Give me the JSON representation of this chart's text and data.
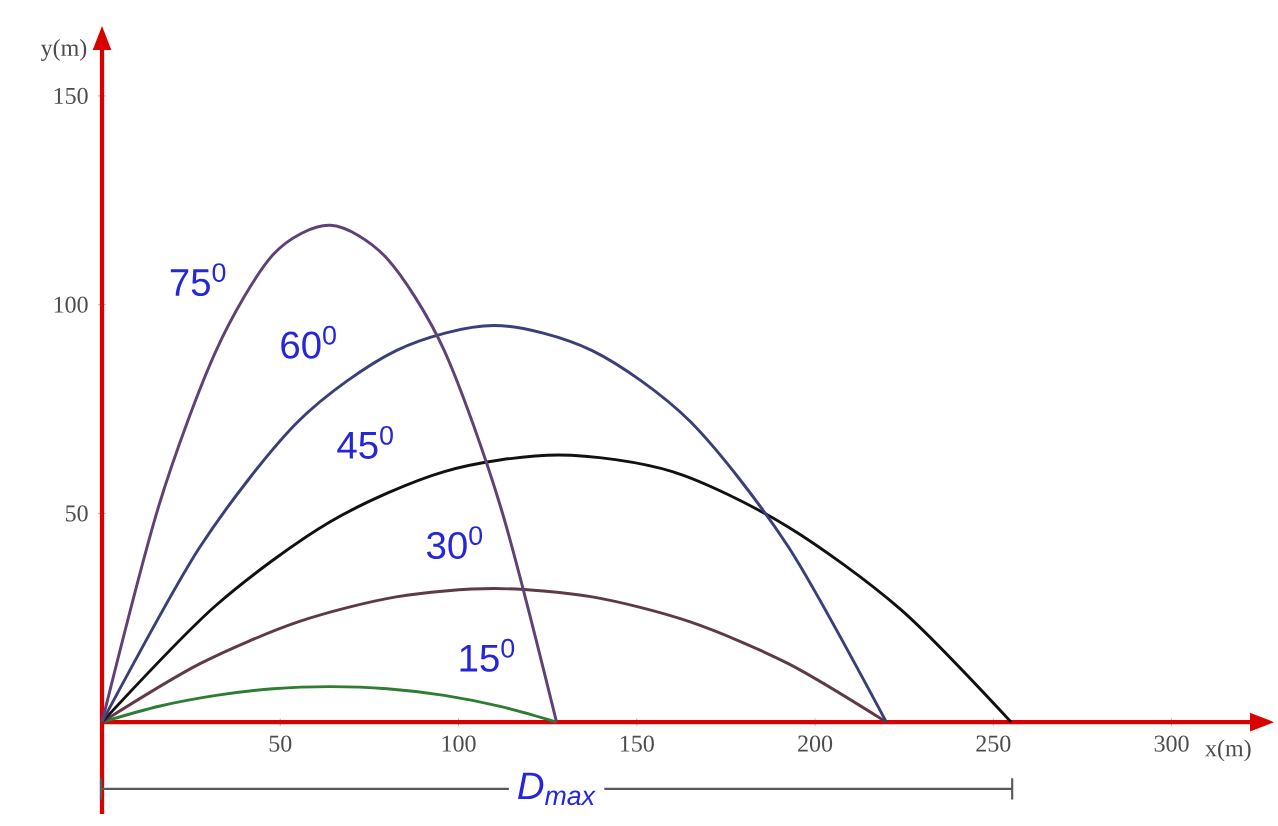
{
  "chart_data": {
    "type": "line",
    "xlabel": "x(m)",
    "ylabel": "y(m)",
    "xlim": [
      0,
      322
    ],
    "ylim": [
      -22,
      161
    ],
    "xticks": [
      50,
      100,
      150,
      200,
      250,
      300
    ],
    "yticks": [
      50,
      100,
      150
    ],
    "grid": false,
    "marker": "none",
    "line_style": "solid",
    "annotations": [
      "D$_{max}$"
    ],
    "series": [
      {
        "name": "15$^{0}$",
        "color": "#2e7d32",
        "x": [
          0,
          16,
          32,
          48,
          64,
          80,
          96,
          112,
          127.5
        ],
        "values": [
          0,
          3.8,
          6.4,
          8,
          8.5,
          8,
          6.4,
          3.7,
          0
        ]
      },
      {
        "name": "30$^{0}$",
        "color": "#5e3a48",
        "x": [
          0,
          27.5,
          55,
          82.5,
          110,
          137.5,
          165,
          192.5,
          220
        ],
        "values": [
          0,
          14,
          24,
          30,
          32,
          30,
          24,
          14,
          0
        ]
      },
      {
        "name": "45$^{0}$",
        "color": "#111111",
        "x": [
          0,
          32,
          64,
          96,
          128,
          160,
          192,
          224,
          255
        ],
        "values": [
          0,
          28,
          48,
          60,
          64,
          60,
          47,
          27,
          0
        ]
      },
      {
        "name": "60$^{0}$",
        "color": "#3a3f78",
        "x": [
          0,
          27.5,
          55,
          82.5,
          110,
          137.5,
          165,
          192.5,
          220
        ],
        "values": [
          0,
          42,
          72,
          89,
          95,
          89,
          72,
          42,
          0
        ]
      },
      {
        "name": "75$^{0}$",
        "color": "#5e4275",
        "x": [
          0,
          16,
          32,
          48,
          64,
          80,
          96,
          112,
          127.5
        ],
        "values": [
          0,
          52,
          89,
          112,
          119,
          111,
          89,
          51,
          0
        ]
      }
    ]
  }
}
